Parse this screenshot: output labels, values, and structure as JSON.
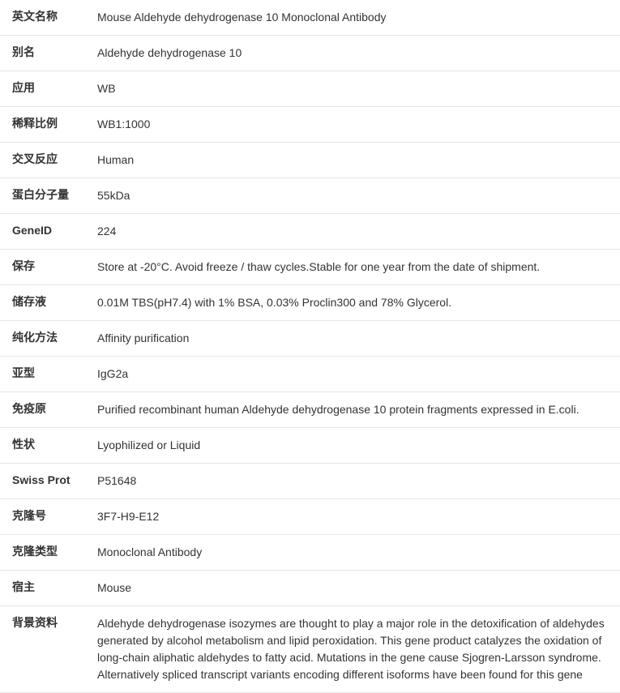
{
  "rows": [
    {
      "label": "英文名称",
      "value": "Mouse Aldehyde dehydrogenase 10 Monoclonal Antibody"
    },
    {
      "label": "别名",
      "value": "Aldehyde dehydrogenase 10"
    },
    {
      "label": "应用",
      "value": "WB"
    },
    {
      "label": "稀释比例",
      "value": "WB1:1000"
    },
    {
      "label": "交叉反应",
      "value": "Human"
    },
    {
      "label": "蛋白分子量",
      "value": "55kDa"
    },
    {
      "label": "GeneID",
      "value": "224"
    },
    {
      "label": "保存",
      "value": "Store at -20°C. Avoid freeze / thaw cycles.Stable for one year from the date of shipment."
    },
    {
      "label": "储存液",
      "value": "0.01M TBS(pH7.4) with 1% BSA, 0.03% Proclin300 and 78% Glycerol."
    },
    {
      "label": "纯化方法",
      "value": "Affinity purification"
    },
    {
      "label": "亚型",
      "value": "IgG2a"
    },
    {
      "label": "免疫原",
      "value": "Purified recombinant human Aldehyde dehydrogenase 10 protein fragments expressed in E.coli."
    },
    {
      "label": "性状",
      "value": "Lyophilized or Liquid"
    },
    {
      "label": "Swiss Prot",
      "value": "P51648"
    },
    {
      "label": "克隆号",
      "value": "3F7-H9-E12"
    },
    {
      "label": "克隆类型",
      "value": "Monoclonal Antibody"
    },
    {
      "label": "宿主",
      "value": "Mouse"
    },
    {
      "label": "背景资料",
      "value": "Aldehyde dehydrogenase isozymes are thought to play a major role in the detoxification of aldehydes generated by alcohol metabolism and lipid peroxidation. This gene product catalyzes the oxidation of long-chain aliphatic aldehydes to fatty acid. Mutations in the gene cause Sjogren-Larsson syndrome. Alternatively spliced transcript variants encoding different isoforms have been found for this gene"
    }
  ]
}
